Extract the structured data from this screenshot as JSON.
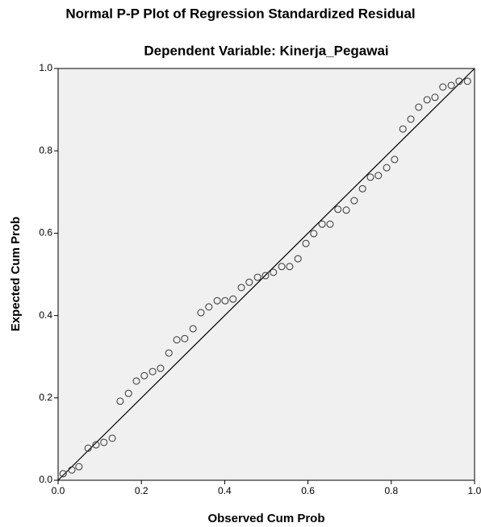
{
  "chart_data": {
    "type": "scatter",
    "title": "Normal P-P Plot of Regression Standardized Residual",
    "subtitle": "Dependent Variable: Kinerja_Pegawai",
    "x_label": "Observed Cum Prob",
    "y_label": "Expected Cum Prob",
    "xlim": [
      0,
      1
    ],
    "ylim": [
      0,
      1
    ],
    "xticks": [
      {
        "value": 0,
        "label": "0.0"
      },
      0.2,
      0.4,
      0.6,
      0.8,
      {
        "value": 1,
        "label": "1.0"
      }
    ],
    "yticks": [
      {
        "value": 0,
        "label": "0.0"
      },
      0.2,
      0.4,
      0.6,
      0.8,
      {
        "value": 1,
        "label": "1.0"
      }
    ],
    "color": "#333333",
    "x": [
      0.012,
      0.033,
      0.05,
      0.072,
      0.091,
      0.11,
      0.13,
      0.149,
      0.169,
      0.188,
      0.207,
      0.227,
      0.246,
      0.266,
      0.285,
      0.304,
      0.324,
      0.343,
      0.362,
      0.382,
      0.401,
      0.42,
      0.44,
      0.459,
      0.479,
      0.498,
      0.517,
      0.537,
      0.556,
      0.576,
      0.595,
      0.614,
      0.634,
      0.653,
      0.672,
      0.692,
      0.711,
      0.731,
      0.75,
      0.769,
      0.789,
      0.808,
      0.828,
      0.847,
      0.866,
      0.886,
      0.905,
      0.924,
      0.944,
      0.963,
      0.983
    ],
    "y": [
      0.016,
      0.025,
      0.033,
      0.078,
      0.086,
      0.092,
      0.102,
      0.192,
      0.211,
      0.241,
      0.254,
      0.264,
      0.272,
      0.309,
      0.341,
      0.344,
      0.368,
      0.407,
      0.421,
      0.436,
      0.436,
      0.44,
      0.468,
      0.481,
      0.493,
      0.497,
      0.505,
      0.519,
      0.519,
      0.538,
      0.575,
      0.599,
      0.622,
      0.622,
      0.658,
      0.656,
      0.679,
      0.708,
      0.736,
      0.74,
      0.759,
      0.779,
      0.853,
      0.877,
      0.906,
      0.924,
      0.93,
      0.955,
      0.959,
      0.969,
      0.969
    ]
  }
}
